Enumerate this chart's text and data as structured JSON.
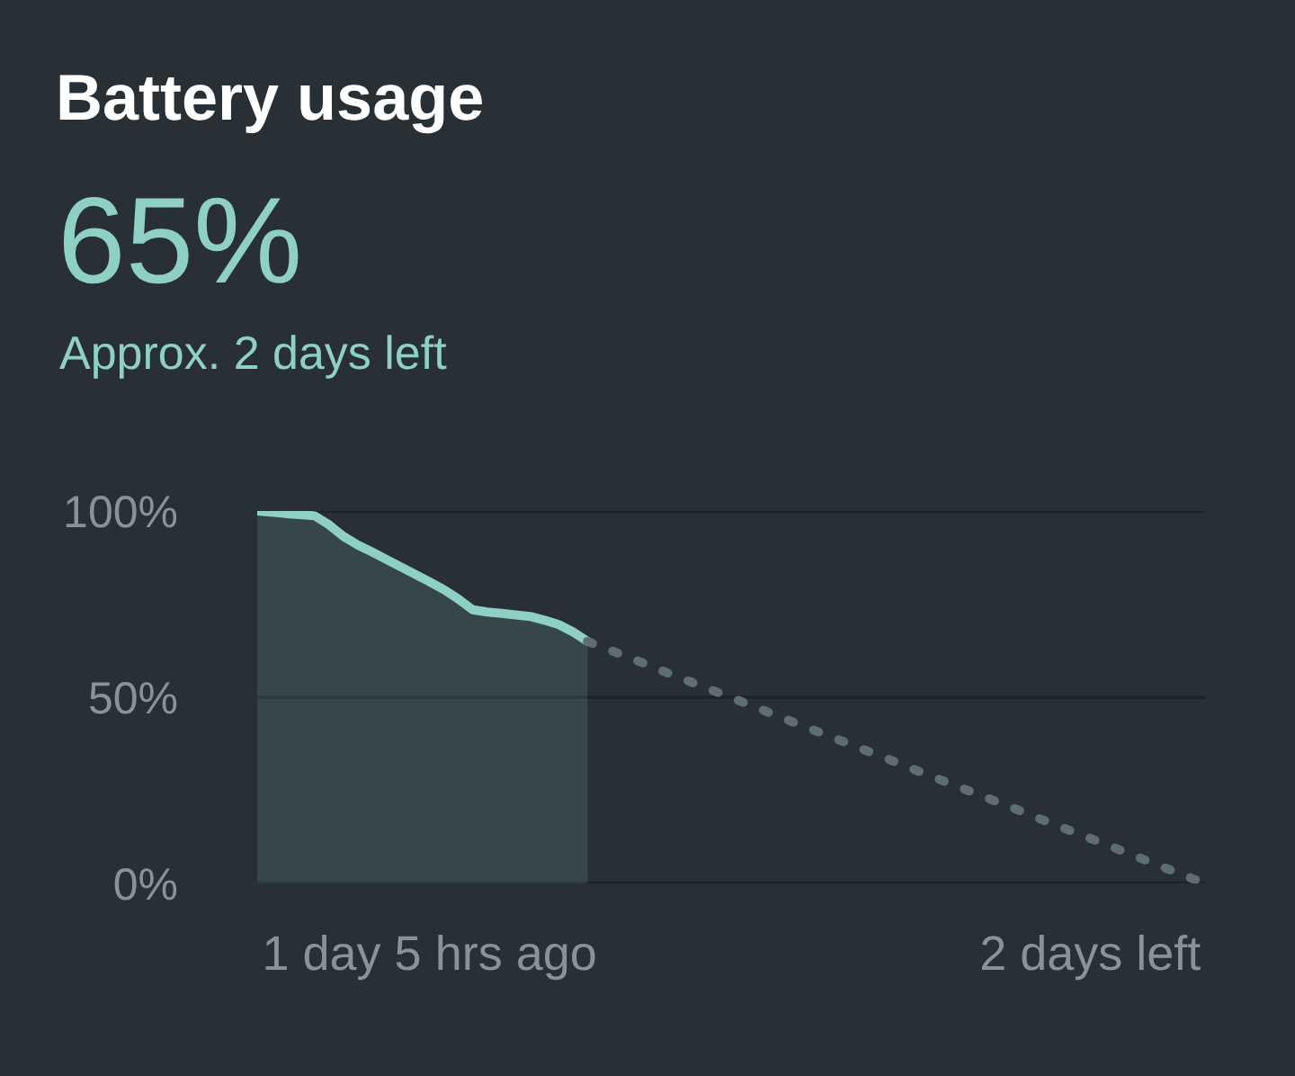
{
  "chart_data": {
    "type": "area",
    "title": "Battery usage",
    "subtitle": "65%",
    "annotations": [
      "Approx. 2 days left"
    ],
    "categories": [
      null,
      null,
      null,
      null,
      null,
      null,
      null,
      null,
      null,
      null,
      null,
      null,
      "1 day 5 hrs ago",
      null,
      null,
      null,
      null,
      null,
      null,
      null,
      null,
      null,
      null,
      null,
      null,
      null,
      null,
      null,
      null,
      null,
      null,
      null,
      null,
      null,
      null,
      null,
      null,
      null,
      null,
      null,
      null,
      null,
      null,
      null,
      null,
      null,
      null,
      null,
      null,
      null,
      null,
      null,
      null,
      null,
      null,
      null,
      null,
      null,
      "2 days left",
      null,
      null,
      null,
      null,
      null,
      null,
      null,
      null
    ],
    "ylim": [
      0,
      100
    ],
    "yticks": [
      {
        "value": 0,
        "label": "0%"
      },
      {
        "value": 50,
        "label": "50%"
      },
      {
        "value": 100,
        "label": "100%"
      }
    ],
    "grid": "y",
    "marker": "none",
    "series": [
      {
        "color": "#8ecfc6",
        "line_style": "solid",
        "values": [
          100,
          99.7,
          99.3,
          99.0,
          98.7,
          96.3,
          93.2,
          90.9,
          89.0,
          87.0,
          85.0,
          83.0,
          81.0,
          78.9,
          76.4,
          73.5,
          72.9,
          72.5,
          72.1,
          71.7,
          70.7,
          69.5,
          67.5,
          65,
          null,
          null,
          null,
          null,
          null,
          null,
          null,
          null,
          null,
          null,
          null,
          null,
          null,
          null,
          null,
          null,
          null,
          null,
          null,
          null,
          null,
          null,
          null,
          null,
          null,
          null,
          null,
          null,
          null,
          null,
          null,
          null,
          null,
          null,
          null,
          null,
          null,
          null,
          null,
          null,
          null,
          null,
          null
        ]
      },
      {
        "type": "line",
        "color": "#5e6d72",
        "line_style": "dotted",
        "values": [
          null,
          null,
          null,
          null,
          null,
          null,
          null,
          null,
          null,
          null,
          null,
          null,
          null,
          null,
          null,
          null,
          null,
          null,
          null,
          null,
          null,
          null,
          null,
          65,
          63.5,
          62.0,
          60.5,
          59.0,
          57.4,
          55.9,
          54.4,
          52.9,
          51.4,
          49.9,
          48.4,
          46.9,
          45.3,
          43.8,
          42.3,
          40.8,
          39.3,
          37.8,
          36.3,
          34.8,
          33.3,
          31.7,
          30.2,
          28.7,
          27.2,
          25.7,
          24.2,
          22.7,
          21.2,
          19.7,
          18.1,
          16.6,
          15.1,
          13.6,
          12.1,
          10.6,
          9.1,
          7.6,
          6.0,
          4.5,
          3.0,
          1.5,
          0
        ]
      }
    ]
  }
}
